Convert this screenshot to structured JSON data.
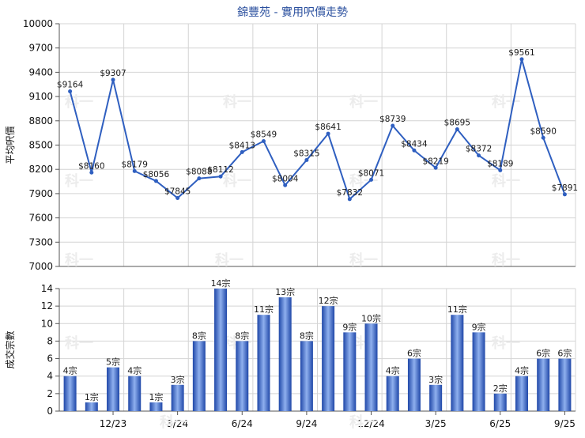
{
  "title": "錦豐苑 - 實用呎價走勢",
  "watermark": "科一",
  "colors": {
    "line": "#2f5fc0",
    "bar_dark": "#1f47a8",
    "bar_light": "#8fb0ee",
    "grid": "#d4d4d4",
    "title": "#2a4f9e",
    "axis_text": "#111111"
  },
  "chart_data": [
    {
      "type": "line",
      "ylabel": "平均呎價",
      "ylim": [
        7000,
        10000
      ],
      "yticks": [
        7000,
        7300,
        7600,
        7900,
        8200,
        8500,
        8800,
        9100,
        9400,
        9700,
        10000
      ],
      "x_index": [
        0,
        1,
        2,
        3,
        4,
        5,
        6,
        7,
        8,
        9,
        10,
        11,
        12,
        13,
        14,
        15,
        16,
        17,
        18,
        19,
        20,
        21,
        22,
        23
      ],
      "values": [
        9164,
        8160,
        9307,
        8179,
        8056,
        7845,
        8088,
        8112,
        8413,
        8549,
        8004,
        8315,
        8641,
        7832,
        8071,
        8739,
        8434,
        8219,
        8695,
        8372,
        8189,
        9561,
        8590,
        7891
      ],
      "data_labels": [
        "$9164",
        "$8160",
        "$9307",
        "$8179",
        "$8056",
        "$7845",
        "$8088",
        "$8112",
        "$8413",
        "$8549",
        "$8004",
        "$8315",
        "$8641",
        "$7832",
        "$8071",
        "$8739",
        "$8434",
        "$8219",
        "$8695",
        "$8372",
        "$8189",
        "$9561",
        "$8590",
        "$7891"
      ],
      "grid": true
    },
    {
      "type": "bar",
      "ylabel": "成交宗數",
      "ylim": [
        0,
        14
      ],
      "yticks": [
        0,
        2,
        4,
        6,
        8,
        10,
        12,
        14
      ],
      "values": [
        4,
        1,
        5,
        4,
        1,
        3,
        8,
        14,
        8,
        11,
        13,
        8,
        12,
        9,
        10,
        4,
        6,
        3,
        11,
        9,
        2,
        4,
        6,
        6
      ],
      "data_labels": [
        "4宗",
        "1宗",
        "5宗",
        "4宗",
        "1宗",
        "3宗",
        "8宗",
        "14宗",
        "8宗",
        "11宗",
        "13宗",
        "8宗",
        "12宗",
        "9宗",
        "10宗",
        "4宗",
        "6宗",
        "3宗",
        "11宗",
        "9宗",
        "2宗",
        "4宗",
        "6宗",
        "6宗"
      ],
      "xtick_labels": [
        "12/23",
        "3/24",
        "6/24",
        "9/24",
        "12/24",
        "3/25",
        "6/25",
        "9/25"
      ],
      "xtick_index": [
        2,
        5,
        8,
        11,
        14,
        17,
        20,
        23
      ],
      "grid": true
    }
  ]
}
